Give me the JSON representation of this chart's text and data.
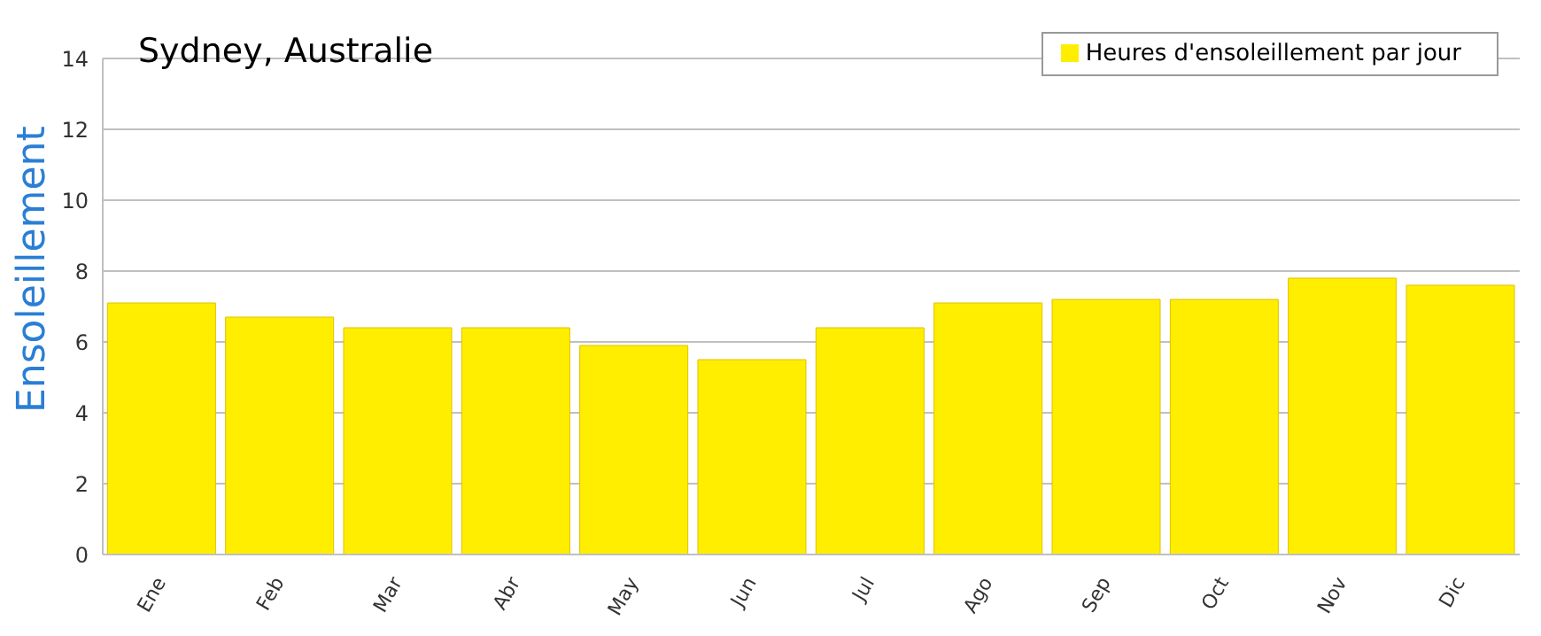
{
  "chart_data": {
    "type": "bar",
    "title": "Sydney, Australie",
    "ylabel": "Ensoleillement",
    "categories": [
      "Ene",
      "Feb",
      "Mar",
      "Abr",
      "May",
      "Jun",
      "Jul",
      "Ago",
      "Sep",
      "Oct",
      "Nov",
      "Dic"
    ],
    "series": [
      {
        "name": "Heures d'ensoleillement par jour",
        "color": "#ffee00",
        "values": [
          7.1,
          6.7,
          6.4,
          6.4,
          5.9,
          5.5,
          6.4,
          7.1,
          7.2,
          7.2,
          7.8,
          7.6
        ]
      }
    ],
    "ylim": [
      0,
      14
    ],
    "yticks": [
      0,
      2,
      4,
      6,
      8,
      10,
      12,
      14
    ],
    "grid": "y",
    "legend": "top right"
  }
}
